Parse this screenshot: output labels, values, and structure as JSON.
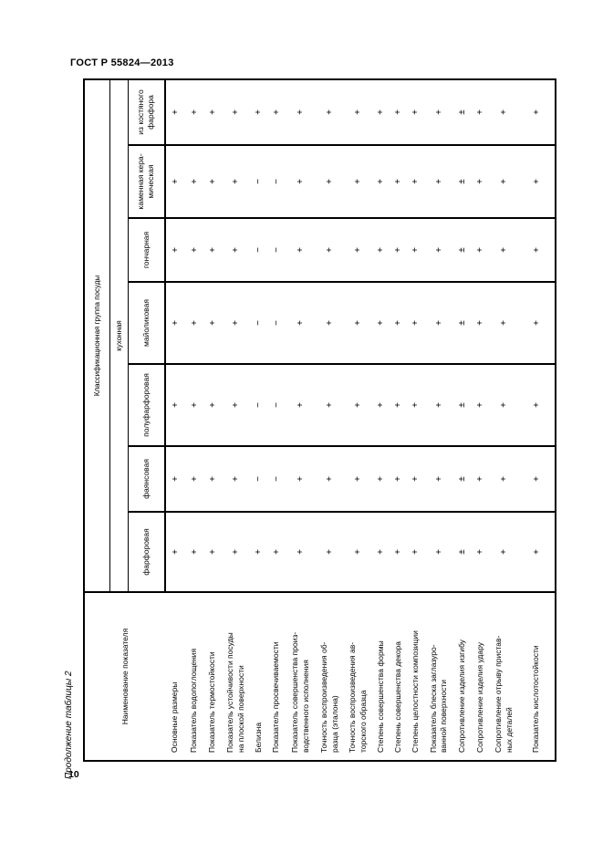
{
  "page": {
    "standard_ref": "ГОСТ Р 55824—2013",
    "table_caption": "Продолжение таблицы 2",
    "page_number": "10",
    "ink_color": "#000000",
    "paper_color": "#ffffff"
  },
  "table": {
    "row_header_title": "Наименование показателя",
    "col_group_title": "Классификационная группа посуды",
    "col_subgroup_title": "кухонная",
    "columns": [
      "фарфоровая",
      "фаянсовая",
      "полуфарфоровая",
      "майоликовая",
      "гончарная",
      "каменная кера-\nмическая",
      "из костяного\nфарфора"
    ],
    "rows": [
      {
        "label": "Основные размеры",
        "values": [
          "+",
          "+",
          "+",
          "+",
          "+",
          "+",
          "+"
        ]
      },
      {
        "label": "Показатель водопоглощения",
        "values": [
          "+",
          "+",
          "+",
          "+",
          "+",
          "+",
          "+"
        ]
      },
      {
        "label": "Показатель термостойкости",
        "values": [
          "+",
          "+",
          "+",
          "+",
          "+",
          "+",
          "+"
        ]
      },
      {
        "label": "Показатель устойчивости посуды\nна плоской поверхности",
        "values": [
          "+",
          "+",
          "+",
          "+",
          "+",
          "+",
          "+"
        ]
      },
      {
        "label": "Белизна",
        "values": [
          "+",
          "−",
          "−",
          "−",
          "−",
          "−",
          "+"
        ]
      },
      {
        "label": "Показатель просвечиваемости",
        "values": [
          "+",
          "−",
          "−",
          "−",
          "−",
          "−",
          "+"
        ]
      },
      {
        "label": "Показатель совершенства произ-\nводственного исполнения",
        "values": [
          "+",
          "+",
          "+",
          "+",
          "+",
          "+",
          "+"
        ]
      },
      {
        "label": "Точность воспроизведения об-\nразца (эталона)",
        "values": [
          "+",
          "+",
          "+",
          "+",
          "+",
          "+",
          "+"
        ]
      },
      {
        "label": "Точность воспроизведения ав-\nторского образца",
        "values": [
          "+",
          "+",
          "+",
          "+",
          "+",
          "+",
          "+"
        ]
      },
      {
        "label": "Степень совершенства формы",
        "values": [
          "+",
          "+",
          "+",
          "+",
          "+",
          "+",
          "+"
        ]
      },
      {
        "label": "Степень совершенства декора",
        "values": [
          "+",
          "+",
          "+",
          "+",
          "+",
          "+",
          "+"
        ]
      },
      {
        "label": "Степень целостности композиции",
        "values": [
          "+",
          "+",
          "+",
          "+",
          "+",
          "+",
          "+"
        ]
      },
      {
        "label": "Показатель блеска заглазуро-\nванной поверхности",
        "values": [
          "+",
          "+",
          "+",
          "+",
          "+",
          "+",
          "+"
        ]
      },
      {
        "label": "Сопротивление изделия изгибу",
        "values": [
          "±",
          "±",
          "±",
          "±",
          "±",
          "±",
          "±"
        ]
      },
      {
        "label": "Сопротивление изделия удару",
        "values": [
          "+",
          "+",
          "+",
          "+",
          "+",
          "+",
          "+"
        ]
      },
      {
        "label": "Сопротивление отрыву пристав-\nных деталей",
        "values": [
          "+",
          "+",
          "+",
          "+",
          "+",
          "+",
          "+"
        ]
      },
      {
        "label": "Показатель кислотостойкости",
        "values": [
          "+",
          "+",
          "+",
          "+",
          "+",
          "+",
          "+"
        ]
      }
    ]
  }
}
